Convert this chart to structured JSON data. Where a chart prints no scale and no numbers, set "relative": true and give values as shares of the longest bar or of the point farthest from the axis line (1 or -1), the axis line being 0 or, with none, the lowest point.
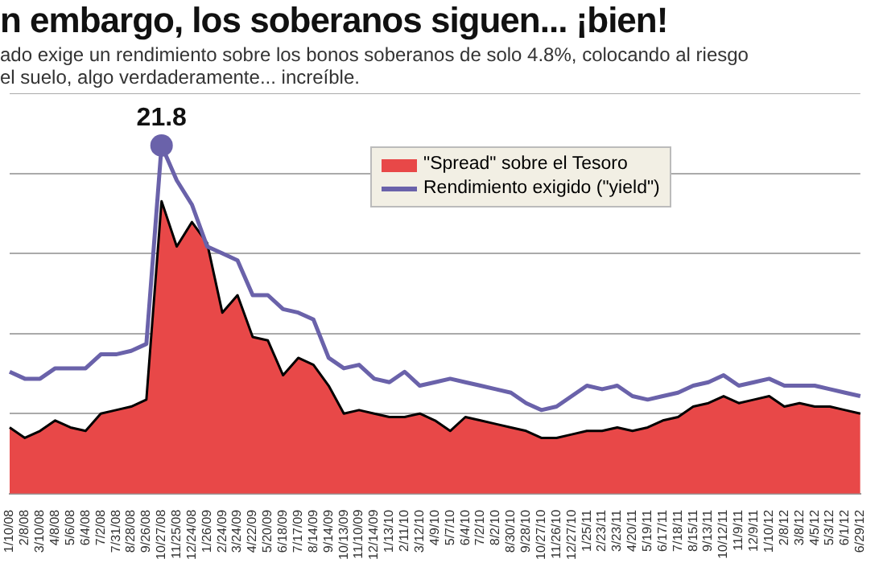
{
  "chart_data": {
    "type": "area",
    "title": "n embargo, los soberanos siguen... ¡bien!",
    "subtitle": "ado exige un rendimiento sobre los bonos soberanos de solo 4.8%, colocando al riesgo\nel suelo, algo verdaderamente... increíble.",
    "categories": [
      "1/10/08",
      "2/8/08",
      "3/10/08",
      "4/8/08",
      "5/6/08",
      "6/4/08",
      "7/2/08",
      "7/31/08",
      "8/28/08",
      "9/26/08",
      "10/27/08",
      "11/25/08",
      "12/24/08",
      "1/26/09",
      "2/24/09",
      "3/24/09",
      "4/22/09",
      "5/20/09",
      "6/18/09",
      "7/17/09",
      "8/14/09",
      "9/14/09",
      "10/13/09",
      "11/10/09",
      "12/14/09",
      "1/13/10",
      "2/11/10",
      "3/12/10",
      "4/9/10",
      "5/7/10",
      "6/4/10",
      "7/2/10",
      "8/2/10",
      "8/30/10",
      "9/28/10",
      "10/27/10",
      "11/26/10",
      "12/27/10",
      "1/25/11",
      "2/23/11",
      "3/23/11",
      "4/20/11",
      "5/19/11",
      "6/17/11",
      "7/18/11",
      "8/15/11",
      "9/13/11",
      "10/12/11",
      "11/9/11",
      "12/9/11",
      "1/10/12",
      "2/8/12",
      "3/8/12",
      "4/5/12",
      "5/3/12",
      "6/1/12",
      "6/29/12"
    ],
    "relative": true,
    "series": [
      {
        "name": "\"Spread\" sobre el Tesoro",
        "color": "#e84848",
        "values": [
          0.19,
          0.16,
          0.18,
          0.21,
          0.19,
          0.18,
          0.23,
          0.24,
          0.25,
          0.27,
          0.84,
          0.71,
          0.78,
          0.72,
          0.52,
          0.57,
          0.45,
          0.44,
          0.34,
          0.39,
          0.37,
          0.31,
          0.23,
          0.24,
          0.23,
          0.22,
          0.22,
          0.23,
          0.21,
          0.18,
          0.22,
          0.21,
          0.2,
          0.19,
          0.18,
          0.16,
          0.16,
          0.17,
          0.18,
          0.18,
          0.19,
          0.18,
          0.19,
          0.21,
          0.22,
          0.25,
          0.26,
          0.28,
          0.26,
          0.27,
          0.28,
          0.25,
          0.26,
          0.25,
          0.25,
          0.24,
          0.23
        ]
      },
      {
        "name": "Rendimiento exigido (\"yield\")",
        "type": "line",
        "color": "#6a62aa",
        "values": [
          0.35,
          0.33,
          0.33,
          0.36,
          0.36,
          0.36,
          0.4,
          0.4,
          0.41,
          0.43,
          1,
          0.9,
          0.83,
          0.71,
          0.69,
          0.67,
          0.57,
          0.57,
          0.53,
          0.52,
          0.5,
          0.39,
          0.36,
          0.37,
          0.33,
          0.32,
          0.35,
          0.31,
          0.32,
          0.33,
          0.32,
          0.31,
          0.3,
          0.29,
          0.26,
          0.24,
          0.25,
          0.28,
          0.31,
          0.3,
          0.31,
          0.28,
          0.27,
          0.28,
          0.29,
          0.31,
          0.32,
          0.34,
          0.31,
          0.32,
          0.33,
          0.31,
          0.31,
          0.31,
          0.3,
          0.29,
          0.28
        ]
      }
    ],
    "annotations": [
      {
        "text": "21.8",
        "x": "10/27/08",
        "y": 1
      }
    ],
    "grid": "y",
    "legend": "top right",
    "marker": "none"
  }
}
